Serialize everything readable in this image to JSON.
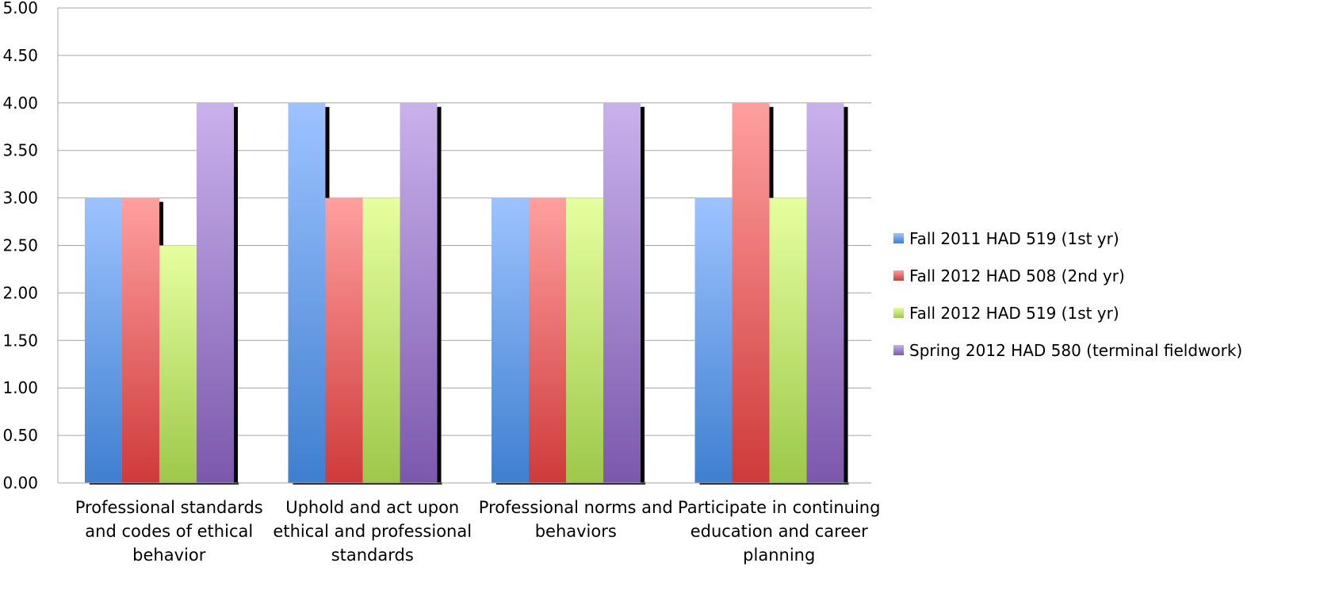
{
  "chart_data": {
    "type": "bar",
    "title": "",
    "xlabel": "",
    "ylabel": "",
    "ylim": [
      0,
      5
    ],
    "y_ticks": [
      "0.00",
      "0.50",
      "1.00",
      "1.50",
      "2.00",
      "2.50",
      "3.00",
      "3.50",
      "4.00",
      "4.50",
      "5.00"
    ],
    "grid": true,
    "legend_position": "right",
    "categories": [
      [
        "Professional standards",
        "and codes of ethical",
        "behavior"
      ],
      [
        "Uphold and act upon",
        "ethical and professional",
        "standards"
      ],
      [
        "Professional norms and",
        "behaviors"
      ],
      [
        "Participate in continuing",
        "education and career",
        "planning"
      ]
    ],
    "series": [
      {
        "name": "Fall 2011 HAD 519 (1st yr)",
        "values": [
          3.0,
          4.0,
          3.0,
          3.0
        ],
        "color_top": "#9dc3ff",
        "color_bottom": "#3f7fd0"
      },
      {
        "name": "Fall 2012 HAD 508 (2nd yr)",
        "values": [
          3.0,
          3.0,
          3.0,
          4.0
        ],
        "color_top": "#ff9f9f",
        "color_bottom": "#cf3a3a"
      },
      {
        "name": "Fall 2012 HAD 519 (1st yr)",
        "values": [
          2.5,
          3.0,
          3.0,
          3.0
        ],
        "color_top": "#e6ff9f",
        "color_bottom": "#9dc84a"
      },
      {
        "name": "Spring 2012 HAD 580 (terminal fieldwork)",
        "values": [
          4.0,
          4.0,
          4.0,
          4.0
        ],
        "color_top": "#c9b1ec",
        "color_bottom": "#7c58ad"
      }
    ]
  }
}
